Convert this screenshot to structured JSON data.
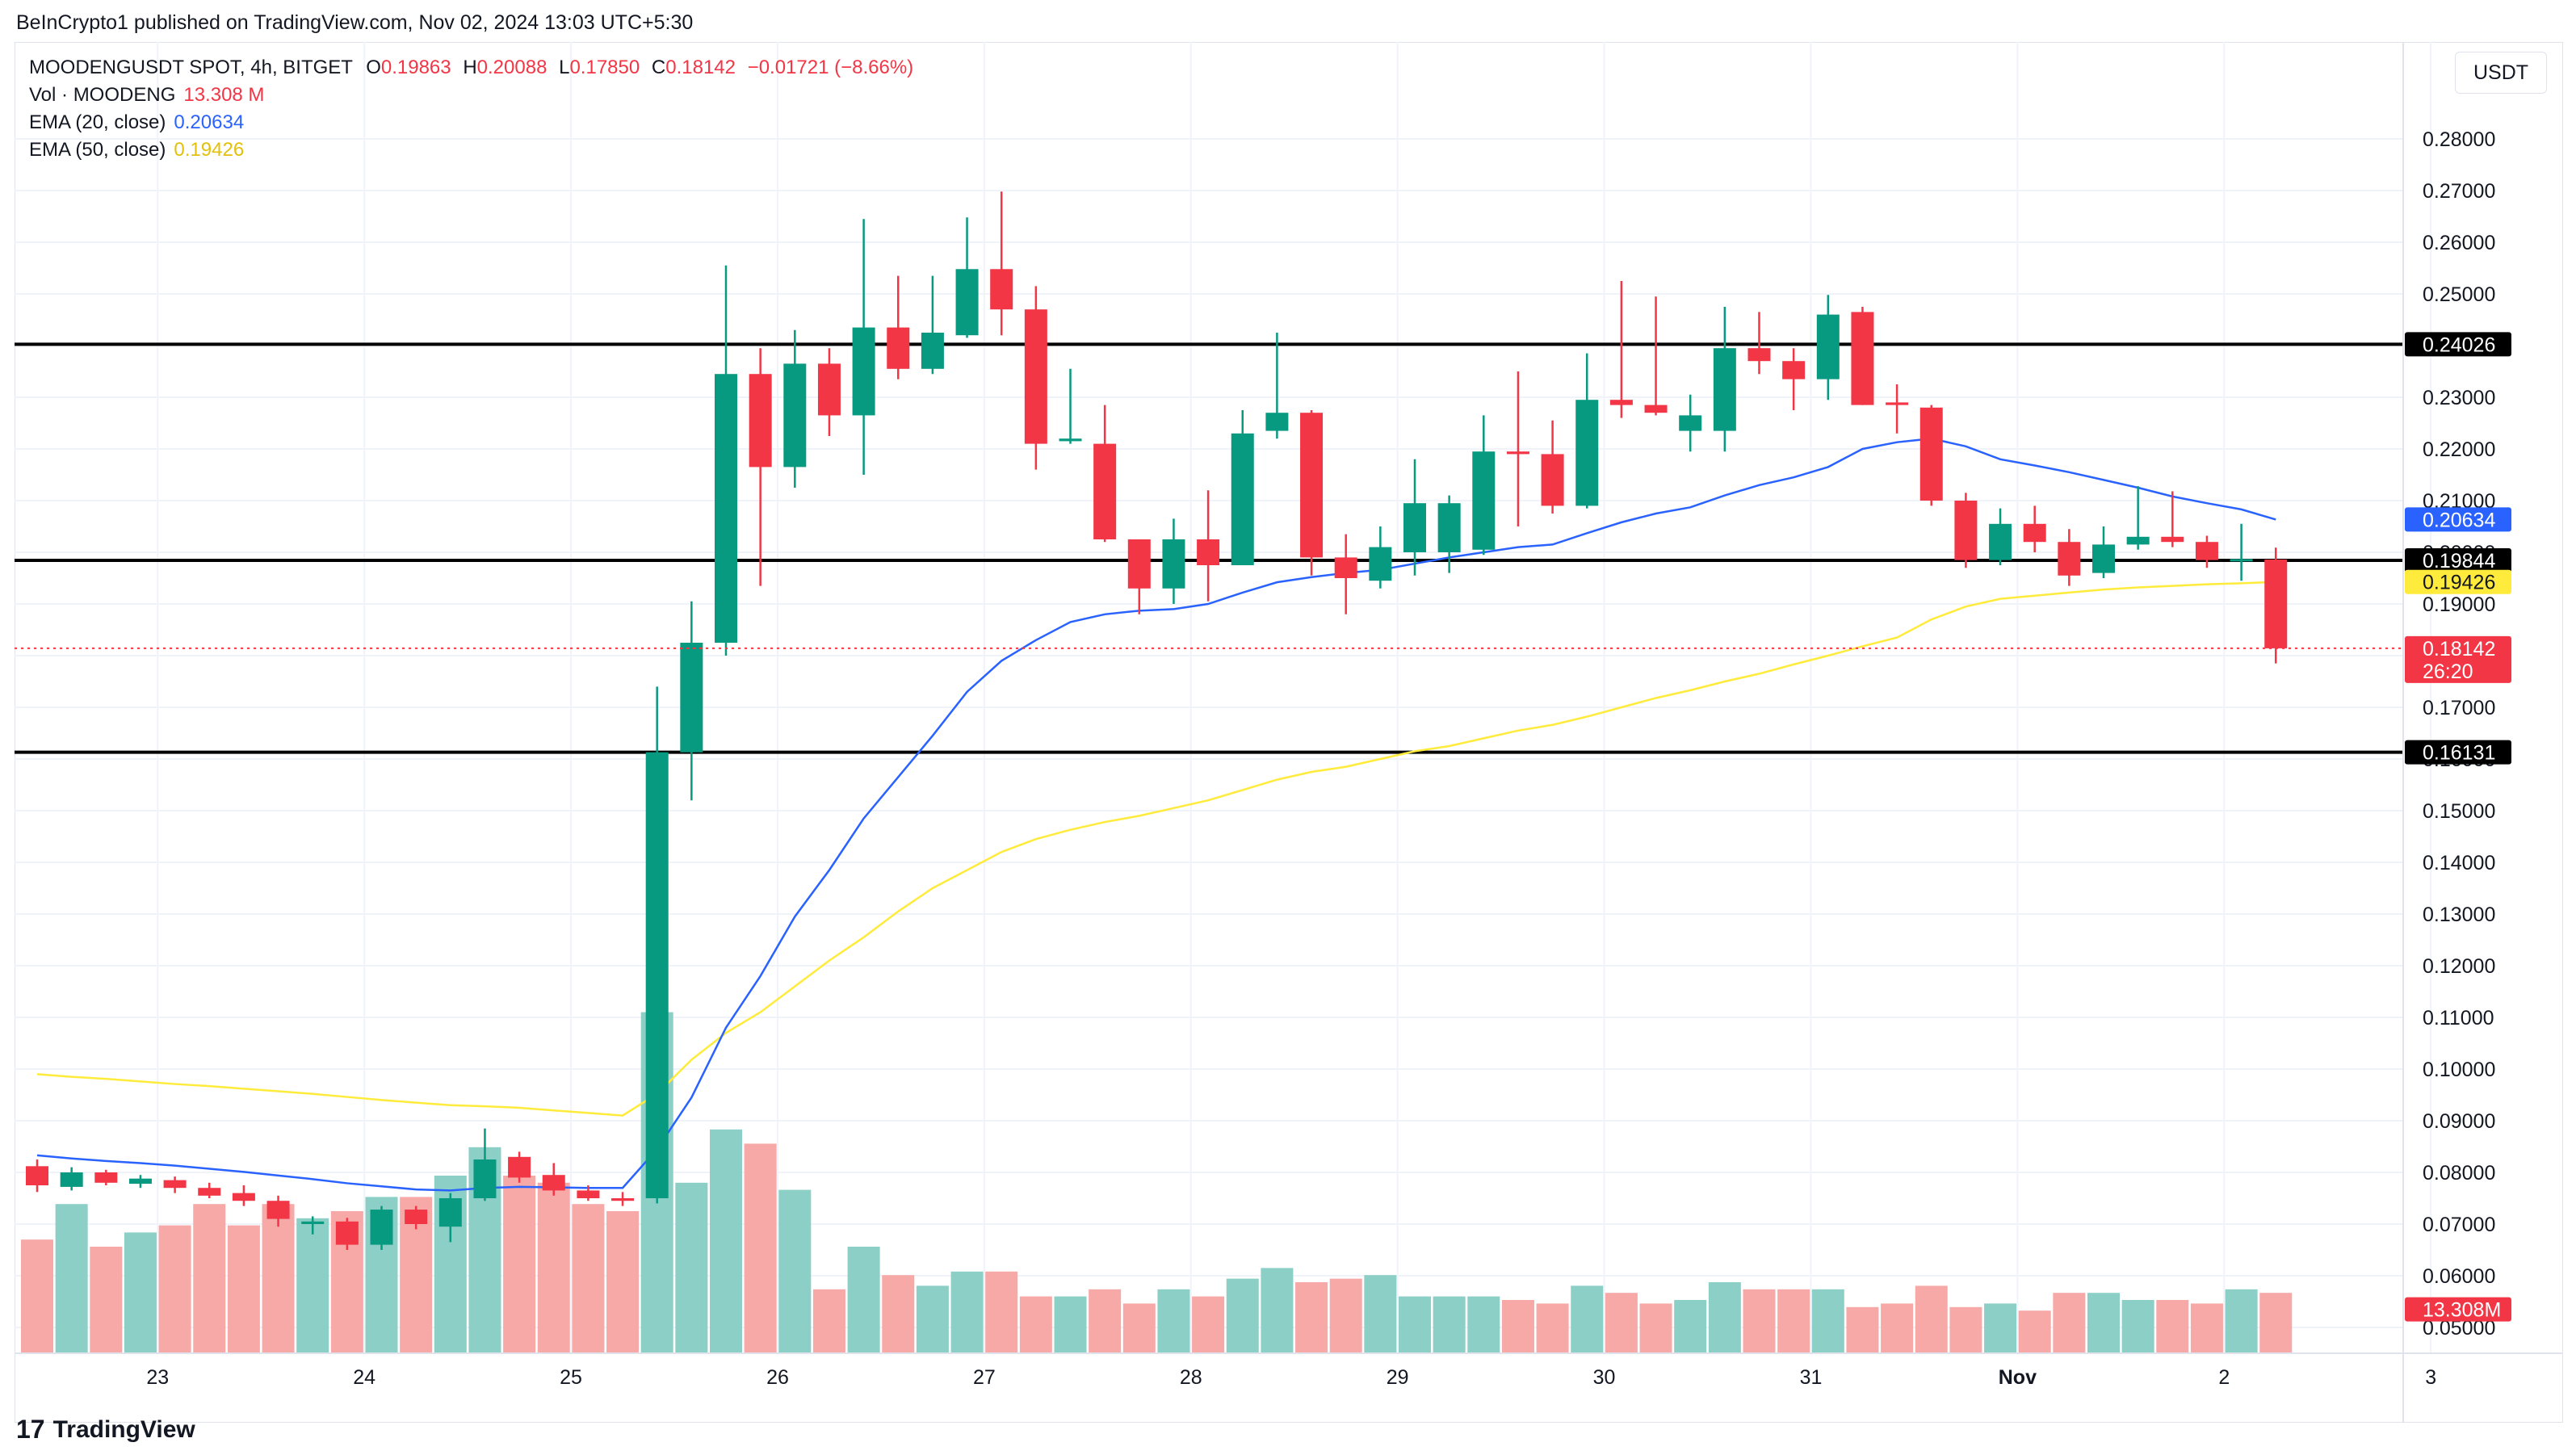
{
  "header": {
    "publisher_line": "BeInCrypto1 published on TradingView.com, Nov 02, 2024 13:03 UTC+5:30"
  },
  "legend": {
    "symbol": "MOODENGUSDT SPOT, 4h, BITGET",
    "open_label": "O",
    "open": "0.19863",
    "high_label": "H",
    "high": "0.20088",
    "low_label": "L",
    "low": "0.17850",
    "close_label": "C",
    "close": "0.18142",
    "change": "−0.01721 (−8.66%)",
    "vol_label": "Vol · MOODENG",
    "vol_value": "13.308 M",
    "ema20_label": "EMA (20, close)",
    "ema20_value": "0.20634",
    "ema50_label": "EMA (50, close)",
    "ema50_value": "0.19426"
  },
  "currency": "USDT",
  "footer": {
    "logo_text": "TradingView",
    "logo_mark": "17"
  },
  "colors": {
    "up": "#089981",
    "down": "#f23645",
    "vol_up": "#8ccfc6",
    "vol_down": "#f7a9a7",
    "ema20": "#2962ff",
    "ema50": "#ffeb3b",
    "level": "#000000",
    "grid": "#f0f3fa"
  },
  "chart_data": {
    "type": "candlestick",
    "title": "MOODENGUSDT SPOT, 4h, BITGET",
    "xlabel": "",
    "ylabel": "USDT",
    "ylim": [
      0.045,
      0.2875
    ],
    "y_ticks": [
      "0.28000",
      "0.27000",
      "0.26000",
      "0.25000",
      "0.24000",
      "0.23000",
      "0.22000",
      "0.21000",
      "0.20000",
      "0.19000",
      "0.18000",
      "0.17000",
      "0.16000",
      "0.15000",
      "0.14000",
      "0.13000",
      "0.12000",
      "0.11000",
      "0.10000",
      "0.09000",
      "0.08000",
      "0.07000",
      "0.06000",
      "0.05000"
    ],
    "x_ticks": [
      {
        "label": "23",
        "index": 3.5
      },
      {
        "label": "24",
        "index": 9.5
      },
      {
        "label": "25",
        "index": 15.5
      },
      {
        "label": "26",
        "index": 21.5
      },
      {
        "label": "27",
        "index": 27.5
      },
      {
        "label": "28",
        "index": 33.5
      },
      {
        "label": "29",
        "index": 39.5
      },
      {
        "label": "30",
        "index": 45.5
      },
      {
        "label": "31",
        "index": 51.5
      },
      {
        "label": "Nov",
        "index": 57.5
      },
      {
        "label": "2",
        "index": 63.5
      },
      {
        "label": "3",
        "index": 69.5
      }
    ],
    "candles": [
      [
        0.0812,
        0.0825,
        0.0762,
        0.0775
      ],
      [
        0.0772,
        0.081,
        0.0765,
        0.08
      ],
      [
        0.08,
        0.0805,
        0.0775,
        0.078
      ],
      [
        0.0778,
        0.0795,
        0.077,
        0.0788
      ],
      [
        0.0785,
        0.0792,
        0.076,
        0.077
      ],
      [
        0.077,
        0.078,
        0.075,
        0.0755
      ],
      [
        0.076,
        0.0775,
        0.0735,
        0.0745
      ],
      [
        0.0745,
        0.0755,
        0.0695,
        0.071
      ],
      [
        0.07,
        0.0715,
        0.068,
        0.0705
      ],
      [
        0.0705,
        0.0712,
        0.065,
        0.066
      ],
      [
        0.066,
        0.0735,
        0.065,
        0.0728
      ],
      [
        0.0728,
        0.0735,
        0.069,
        0.07
      ],
      [
        0.0695,
        0.076,
        0.0665,
        0.075
      ],
      [
        0.075,
        0.0885,
        0.0745,
        0.0825
      ],
      [
        0.083,
        0.084,
        0.078,
        0.079
      ],
      [
        0.0795,
        0.0818,
        0.0755,
        0.0765
      ],
      [
        0.0765,
        0.0775,
        0.0745,
        0.075
      ],
      [
        0.075,
        0.0762,
        0.0735,
        0.0745
      ],
      [
        0.075,
        0.174,
        0.074,
        0.1613
      ],
      [
        0.1613,
        0.1905,
        0.152,
        0.1825
      ],
      [
        0.1825,
        0.2555,
        0.18,
        0.2345
      ],
      [
        0.2345,
        0.2395,
        0.1935,
        0.2165
      ],
      [
        0.2165,
        0.243,
        0.2125,
        0.2365
      ],
      [
        0.2365,
        0.2395,
        0.2225,
        0.2265
      ],
      [
        0.2265,
        0.2645,
        0.215,
        0.2435
      ],
      [
        0.2435,
        0.2535,
        0.2335,
        0.2355
      ],
      [
        0.2355,
        0.2535,
        0.2345,
        0.2425
      ],
      [
        0.242,
        0.2648,
        0.2415,
        0.2548
      ],
      [
        0.2548,
        0.2698,
        0.242,
        0.247
      ],
      [
        0.247,
        0.2515,
        0.216,
        0.221
      ],
      [
        0.2215,
        0.2355,
        0.221,
        0.222
      ],
      [
        0.221,
        0.2285,
        0.202,
        0.2025
      ],
      [
        0.2025,
        0.2025,
        0.188,
        0.193
      ],
      [
        0.193,
        0.2065,
        0.19,
        0.2025
      ],
      [
        0.2025,
        0.212,
        0.1905,
        0.1975
      ],
      [
        0.1975,
        0.2275,
        0.1975,
        0.223
      ],
      [
        0.2235,
        0.2425,
        0.222,
        0.227
      ],
      [
        0.227,
        0.2275,
        0.1955,
        0.199
      ],
      [
        0.199,
        0.2035,
        0.188,
        0.195
      ],
      [
        0.1945,
        0.205,
        0.193,
        0.201
      ],
      [
        0.2,
        0.218,
        0.1955,
        0.2095
      ],
      [
        0.2,
        0.211,
        0.196,
        0.2095
      ],
      [
        0.2005,
        0.2265,
        0.1995,
        0.2195
      ],
      [
        0.2195,
        0.235,
        0.205,
        0.219
      ],
      [
        0.219,
        0.2255,
        0.2075,
        0.209
      ],
      [
        0.209,
        0.2385,
        0.2085,
        0.2295
      ],
      [
        0.2295,
        0.2525,
        0.226,
        0.2285
      ],
      [
        0.2285,
        0.2495,
        0.2265,
        0.227
      ],
      [
        0.2235,
        0.2305,
        0.2195,
        0.2265
      ],
      [
        0.2235,
        0.2475,
        0.2195,
        0.2395
      ],
      [
        0.2395,
        0.2465,
        0.2345,
        0.237
      ],
      [
        0.237,
        0.2395,
        0.2275,
        0.2335
      ],
      [
        0.2335,
        0.2498,
        0.2295,
        0.246
      ],
      [
        0.2465,
        0.2475,
        0.2285,
        0.2285
      ],
      [
        0.229,
        0.2325,
        0.223,
        0.2285
      ],
      [
        0.228,
        0.2285,
        0.209,
        0.21
      ],
      [
        0.21,
        0.2115,
        0.197,
        0.1985
      ],
      [
        0.1985,
        0.2085,
        0.1975,
        0.2055
      ],
      [
        0.2055,
        0.209,
        0.2,
        0.202
      ],
      [
        0.202,
        0.2045,
        0.1935,
        0.1955
      ],
      [
        0.196,
        0.205,
        0.195,
        0.2015
      ],
      [
        0.2015,
        0.2128,
        0.2005,
        0.203
      ],
      [
        0.203,
        0.2118,
        0.201,
        0.202
      ],
      [
        0.202,
        0.2032,
        0.197,
        0.1985
      ],
      [
        0.1985,
        0.2055,
        0.1945,
        0.1987
      ],
      [
        0.1986,
        0.2009,
        0.1785,
        0.18142
      ]
    ],
    "volume_relative": [
      0.32,
      0.42,
      0.3,
      0.34,
      0.36,
      0.42,
      0.36,
      0.42,
      0.38,
      0.4,
      0.44,
      0.44,
      0.5,
      0.58,
      0.5,
      0.48,
      0.42,
      0.4,
      0.96,
      0.48,
      0.63,
      0.59,
      0.46,
      0.18,
      0.3,
      0.22,
      0.19,
      0.23,
      0.23,
      0.16,
      0.16,
      0.18,
      0.14,
      0.18,
      0.16,
      0.21,
      0.24,
      0.2,
      0.21,
      0.22,
      0.16,
      0.16,
      0.16,
      0.15,
      0.14,
      0.19,
      0.17,
      0.14,
      0.15,
      0.2,
      0.18,
      0.18,
      0.18,
      0.13,
      0.14,
      0.19,
      0.13,
      0.14,
      0.12,
      0.17,
      0.17,
      0.15,
      0.15,
      0.14,
      0.18,
      0.17
    ],
    "ema20": [
      0.0833,
      0.0827,
      0.0822,
      0.0818,
      0.0813,
      0.0807,
      0.0801,
      0.0794,
      0.0787,
      0.0779,
      0.0773,
      0.0767,
      0.0765,
      0.077,
      0.0772,
      0.0771,
      0.077,
      0.077,
      0.0845,
      0.0945,
      0.108,
      0.118,
      0.1295,
      0.1385,
      0.1485,
      0.1565,
      0.1645,
      0.173,
      0.179,
      0.183,
      0.1865,
      0.188,
      0.1887,
      0.189,
      0.19,
      0.1922,
      0.1942,
      0.1952,
      0.196,
      0.1966,
      0.1978,
      0.199,
      0.2,
      0.201,
      0.2015,
      0.2037,
      0.2058,
      0.2075,
      0.2087,
      0.211,
      0.213,
      0.2145,
      0.2165,
      0.22,
      0.2213,
      0.222,
      0.2205,
      0.218,
      0.2168,
      0.2155,
      0.214,
      0.2125,
      0.2108,
      0.2095,
      0.2083,
      0.20634
    ],
    "ema50": [
      0.099,
      0.0985,
      0.0981,
      0.0976,
      0.0971,
      0.0967,
      0.0962,
      0.0957,
      0.0952,
      0.0946,
      0.094,
      0.0935,
      0.093,
      0.0928,
      0.0925,
      0.092,
      0.0915,
      0.091,
      0.0952,
      0.1018,
      0.107,
      0.111,
      0.116,
      0.121,
      0.1255,
      0.1305,
      0.135,
      0.1385,
      0.142,
      0.1445,
      0.1463,
      0.1478,
      0.149,
      0.1505,
      0.152,
      0.154,
      0.156,
      0.1575,
      0.1585,
      0.16,
      0.1615,
      0.1625,
      0.164,
      0.1655,
      0.1666,
      0.1682,
      0.17,
      0.1718,
      0.1733,
      0.175,
      0.1765,
      0.1783,
      0.18,
      0.1818,
      0.1835,
      0.187,
      0.1895,
      0.191,
      0.1916,
      0.1922,
      0.1928,
      0.1932,
      0.1935,
      0.1938,
      0.194,
      0.19426
    ],
    "levels": [
      0.24026,
      0.19844,
      0.16131
    ],
    "price_labels": {
      "level_top": "0.24026",
      "level_mid": "0.19844",
      "level_bottom": "0.16131",
      "ema20": "0.20634",
      "ema50": "0.19426",
      "last": "0.18142",
      "countdown": "26:20",
      "volume": "13.308M"
    }
  }
}
